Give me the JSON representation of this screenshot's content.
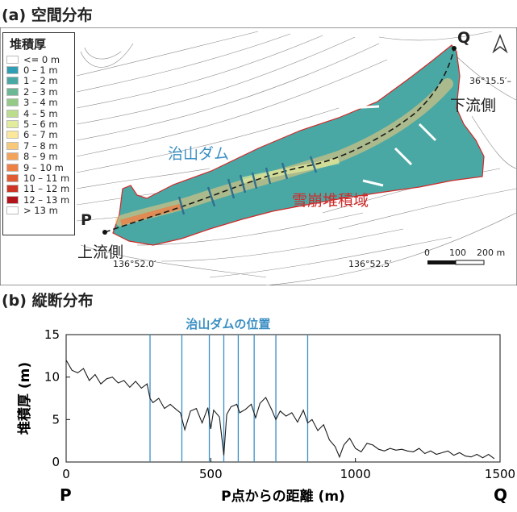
{
  "map_panel": {
    "title": "(a) 空間分布",
    "legend": {
      "title": "堆積厚",
      "items": [
        {
          "label": "<= 0 m",
          "color": "#ffffff"
        },
        {
          "label": "0 – 1 m",
          "color": "#2f9db3"
        },
        {
          "label": "1 – 2 m",
          "color": "#4aa8a4"
        },
        {
          "label": "2 – 3 m",
          "color": "#6db894"
        },
        {
          "label": "3 – 4 m",
          "color": "#95c988"
        },
        {
          "label": "4 – 5 m",
          "color": "#bcdc8e"
        },
        {
          "label": "5 – 6 m",
          "color": "#e2ec9b"
        },
        {
          "label": "6 – 7 m",
          "color": "#fbe89a"
        },
        {
          "label": "7 – 8 m",
          "color": "#f9c878"
        },
        {
          "label": "8 – 9 m",
          "color": "#f4a35b"
        },
        {
          "label": "9 – 10 m",
          "color": "#ee8045"
        },
        {
          "label": "10 – 11 m",
          "color": "#e05a32"
        },
        {
          "label": "11 – 12 m",
          "color": "#cc3526"
        },
        {
          "label": "12 – 13 m",
          "color": "#b3141b"
        },
        {
          "label": "> 13 m",
          "color": "#ffffff"
        }
      ]
    },
    "point_p": "P",
    "point_q": "Q",
    "upstream_label": "上流側",
    "downstream_label": "下流側",
    "dam_label": "治山ダム",
    "deposit_area_label": "雪崩堆積域",
    "lat_label": "36°15.5′–",
    "lon_label_1": "136°52.0′",
    "lon_label_2": "136°52.5′",
    "scale_bar": {
      "zero": "0",
      "mid": "100",
      "end": "200 m"
    },
    "north_arrow": "A"
  },
  "profile_panel": {
    "title": "(b) 縦断分布",
    "dam_caption": "治山ダムの位置",
    "p_label": "P",
    "q_label": "Q"
  },
  "chart_data": {
    "type": "line",
    "xlabel": "P点からの距離 (m)",
    "ylabel": "堆積厚 (m)",
    "xlim": [
      0,
      1500
    ],
    "ylim": [
      0,
      15
    ],
    "xticks": [
      0,
      500,
      1000,
      1500
    ],
    "yticks": [
      0,
      5,
      10,
      15
    ],
    "dam_positions_m": [
      290,
      400,
      495,
      545,
      595,
      650,
      725,
      835
    ],
    "x": [
      0,
      20,
      40,
      60,
      80,
      100,
      120,
      140,
      160,
      180,
      200,
      220,
      240,
      260,
      280,
      290,
      300,
      320,
      340,
      360,
      380,
      395,
      410,
      430,
      450,
      470,
      490,
      500,
      510,
      530,
      545,
      555,
      570,
      590,
      600,
      620,
      640,
      655,
      670,
      690,
      710,
      725,
      740,
      760,
      780,
      800,
      820,
      835,
      850,
      870,
      890,
      910,
      930,
      945,
      960,
      980,
      1000,
      1020,
      1040,
      1060,
      1080,
      1100,
      1120,
      1140,
      1160,
      1180,
      1200,
      1220,
      1240,
      1260,
      1280,
      1300,
      1320,
      1340,
      1360,
      1380,
      1400,
      1420,
      1440,
      1460,
      1480
    ],
    "y": [
      12.0,
      10.8,
      10.5,
      11.0,
      9.6,
      10.3,
      9.2,
      9.8,
      10.0,
      9.3,
      9.6,
      8.8,
      9.5,
      8.7,
      9.2,
      7.5,
      7.0,
      7.5,
      6.3,
      6.8,
      6.2,
      5.8,
      3.8,
      6.0,
      6.3,
      4.6,
      6.4,
      3.9,
      6.1,
      5.3,
      0.8,
      5.6,
      6.5,
      6.8,
      5.8,
      6.2,
      6.8,
      5.2,
      6.9,
      7.6,
      6.2,
      5.0,
      6.0,
      5.4,
      5.8,
      4.7,
      6.1,
      4.6,
      5.0,
      3.7,
      4.4,
      2.6,
      1.8,
      0.6,
      2.0,
      2.8,
      1.6,
      1.2,
      2.2,
      2.0,
      1.5,
      1.3,
      1.6,
      1.4,
      1.5,
      1.3,
      1.2,
      1.6,
      1.0,
      1.3,
      0.9,
      1.1,
      1.3,
      0.8,
      1.1,
      0.7,
      0.6,
      0.9,
      0.5,
      0.9,
      0.4
    ],
    "line_color": "#1a1a1a",
    "dam_line_color": "#3b8fc4"
  },
  "colors": {
    "accent_blue": "#3b8fc4",
    "accent_red": "#d02a2a"
  }
}
